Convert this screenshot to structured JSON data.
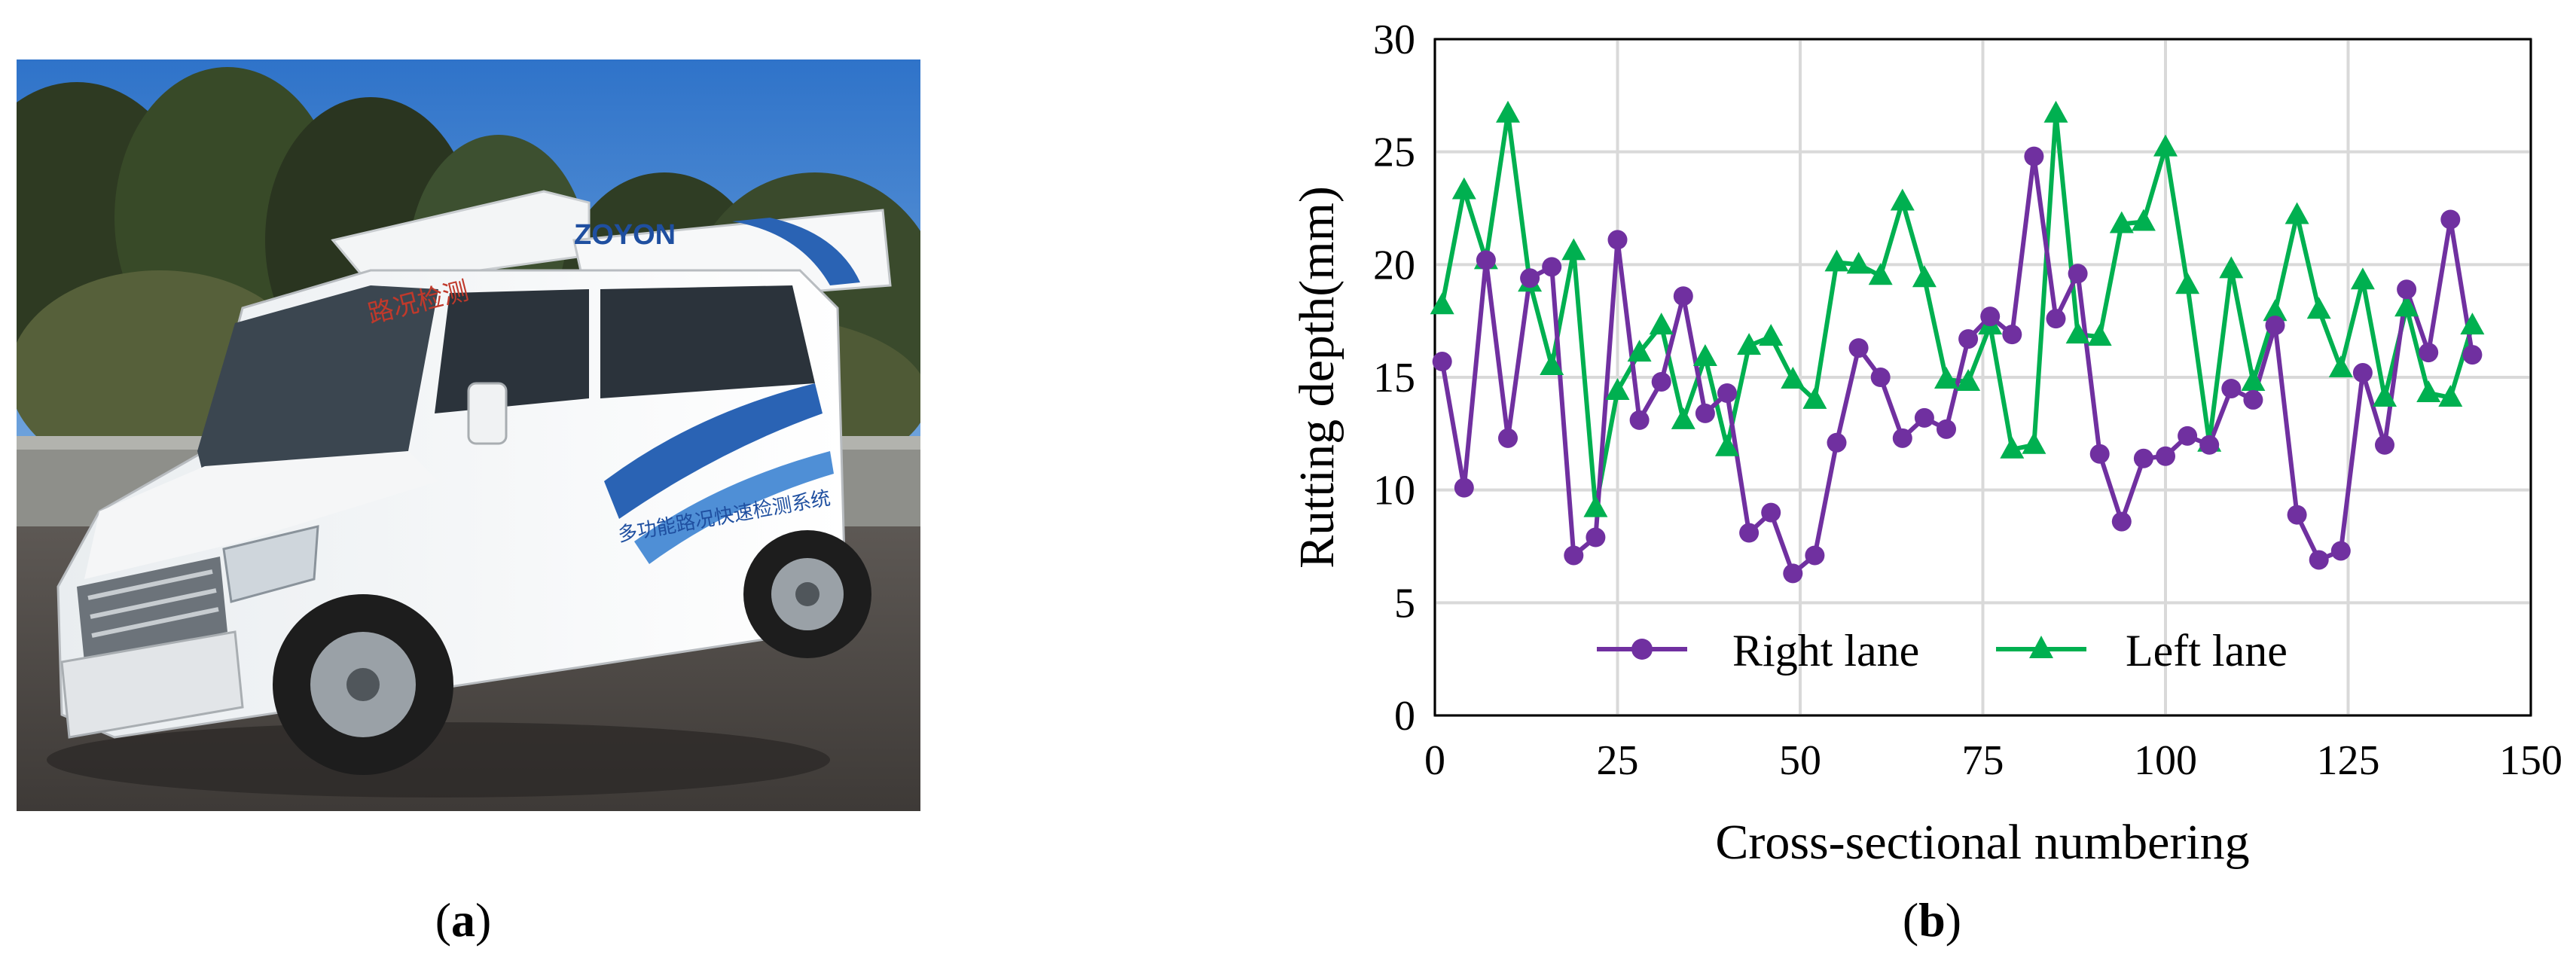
{
  "captions": {
    "a": "a",
    "b": "b"
  },
  "photo": {
    "sky": "#2f73c9",
    "van_logo": "ZOYON",
    "van_side_text": "多功能路况快速检测系统",
    "van_roof_text": "路况检测"
  },
  "chart_data": {
    "type": "line",
    "xlabel": "Cross-sectional numbering",
    "ylabel": "Rutting depth(mm)",
    "xlim": [
      0,
      150
    ],
    "ylim": [
      0,
      30
    ],
    "xticks": [
      0,
      25,
      50,
      75,
      100,
      125,
      150
    ],
    "yticks": [
      0,
      5,
      10,
      15,
      20,
      25,
      30
    ],
    "grid": true,
    "legend": "bottom-center",
    "x": [
      1,
      4,
      7,
      10,
      13,
      16,
      19,
      22,
      25,
      28,
      31,
      34,
      37,
      40,
      43,
      46,
      49,
      52,
      55,
      58,
      61,
      64,
      67,
      70,
      73,
      76,
      79,
      82,
      85,
      88,
      91,
      94,
      97,
      100,
      103,
      106,
      109,
      112,
      115,
      118,
      121,
      124,
      127,
      130,
      133,
      136,
      139,
      142
    ],
    "series": [
      {
        "name": "Right lane",
        "color": "#7030a0",
        "marker": "circle",
        "values": [
          15.7,
          10.1,
          20.2,
          12.3,
          19.4,
          19.9,
          7.1,
          7.9,
          21.1,
          13.1,
          14.8,
          18.6,
          13.4,
          14.3,
          8.1,
          9.0,
          6.3,
          7.1,
          12.1,
          16.3,
          15.0,
          12.3,
          13.2,
          12.7,
          16.7,
          17.7,
          16.9,
          24.8,
          17.6,
          19.6,
          11.6,
          8.6,
          11.4,
          11.5,
          12.4,
          12.0,
          14.5,
          14.0,
          17.3,
          8.9,
          6.9,
          7.3,
          15.2,
          12.0,
          18.9,
          16.1,
          22.0,
          16.0
        ]
      },
      {
        "name": "Left lane",
        "color": "#00b050",
        "marker": "triangle",
        "values": [
          18.2,
          23.3,
          20.2,
          26.7,
          19.2,
          15.5,
          20.6,
          9.2,
          14.4,
          16.1,
          17.3,
          13.1,
          15.9,
          11.9,
          16.4,
          16.8,
          14.9,
          14.0,
          20.1,
          20.0,
          19.5,
          22.8,
          19.4,
          14.9,
          14.8,
          17.3,
          11.8,
          12.0,
          26.7,
          16.9,
          16.8,
          21.8,
          21.9,
          25.2,
          19.1,
          12.1,
          19.8,
          14.8,
          17.9,
          22.2,
          18.0,
          15.4,
          19.3,
          14.1,
          18.1,
          14.3,
          14.1,
          17.3
        ]
      }
    ]
  }
}
